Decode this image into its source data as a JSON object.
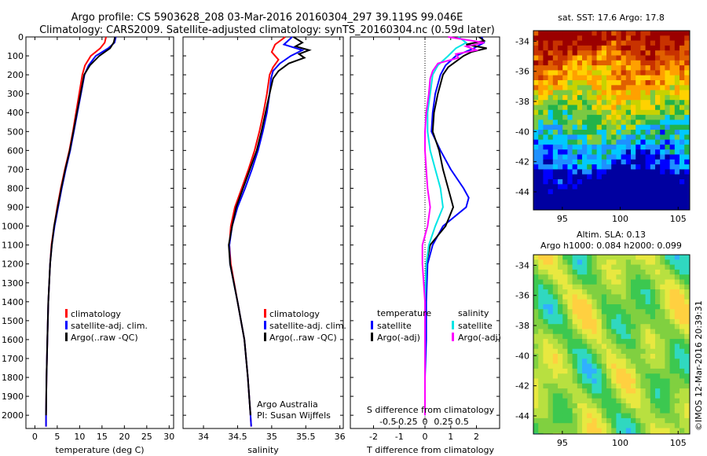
{
  "header": {
    "line1": "Argo profile: CS 5903628_208 03-Mar-2016 20160304_297 39.119S 99.046E",
    "line2": "Climatology: CARS2009. Satellite-adjusted climatology: synTS_20160304.nc (0.59d later)"
  },
  "footer": {
    "credit1": "Argo Australia",
    "credit2": "PI: Susan Wijffels",
    "imos": "©IMOS 12-Mar-2016 20:39:31"
  },
  "colors": {
    "climatology": "#ff0000",
    "satellite": "#0000ff",
    "argo": "#000000",
    "sal_satellite": "#00e5e5",
    "sal_argo": "#ff00ff"
  },
  "depth_ticks": [
    0,
    100,
    200,
    300,
    400,
    500,
    600,
    700,
    800,
    900,
    1000,
    1100,
    1200,
    1300,
    1400,
    1500,
    1600,
    1700,
    1800,
    1900,
    2000
  ],
  "chart_data": [
    {
      "type": "line",
      "xlabel": "temperature (deg C)",
      "xlim": [
        -2,
        31
      ],
      "ylim": [
        2070,
        0
      ],
      "xticks": [
        0,
        5,
        10,
        15,
        20,
        25,
        30
      ],
      "legend": [
        "climatology",
        "satellite-adj. clim.",
        "Argo(..raw -QC)"
      ],
      "series": [
        {
          "name": "climatology",
          "color": "#ff0000",
          "depth": [
            0,
            30,
            60,
            100,
            150,
            200,
            300,
            400,
            500,
            600,
            700,
            800,
            900,
            1000,
            1100,
            1200,
            1400,
            1600,
            1800,
            2000,
            2060
          ],
          "values": [
            15.9,
            15.6,
            14.6,
            12.5,
            11.2,
            10.6,
            9.9,
            9.2,
            8.5,
            7.7,
            6.7,
            5.8,
            5.0,
            4.3,
            3.7,
            3.4,
            3.0,
            2.8,
            2.6,
            2.5,
            2.5
          ]
        },
        {
          "name": "satellite-adj. clim.",
          "color": "#0000ff",
          "depth": [
            0,
            30,
            60,
            100,
            150,
            200,
            300,
            400,
            500,
            600,
            700,
            800,
            900,
            1000,
            1100,
            1200,
            1400,
            1600,
            1800,
            2000,
            2060
          ],
          "values": [
            18.1,
            17.8,
            16.4,
            13.6,
            12.0,
            11.1,
            10.3,
            9.5,
            8.7,
            7.9,
            6.9,
            6.0,
            5.2,
            4.4,
            3.8,
            3.4,
            3.0,
            2.8,
            2.6,
            2.5,
            2.5
          ]
        },
        {
          "name": "Argo(..raw -QC)",
          "color": "#000000",
          "depth": [
            0,
            30,
            60,
            100,
            150,
            200,
            300,
            400,
            500,
            600,
            700,
            800,
            900,
            1000,
            1100,
            1200,
            1400,
            1600,
            1800,
            2000
          ],
          "values": [
            17.9,
            17.6,
            16.8,
            14.4,
            12.3,
            11.0,
            10.2,
            9.4,
            8.6,
            7.8,
            6.8,
            5.9,
            5.1,
            4.3,
            3.8,
            3.4,
            3.0,
            2.8,
            2.6,
            2.5
          ]
        }
      ]
    },
    {
      "type": "line",
      "xlabel": "salinity",
      "xlim": [
        33.7,
        36.05
      ],
      "ylim": [
        2070,
        0
      ],
      "xticks": [
        34,
        34.5,
        35,
        35.5,
        36
      ],
      "legend": [
        "climatology",
        "satellite-adj. clim.",
        "Argo(..raw -QC)"
      ],
      "series": [
        {
          "name": "climatology",
          "color": "#ff0000",
          "depth": [
            0,
            40,
            80,
            120,
            160,
            200,
            300,
            400,
            500,
            600,
            700,
            800,
            900,
            1000,
            1100,
            1200,
            1400,
            1600,
            1800,
            2000,
            2060
          ],
          "values": [
            35.2,
            35.05,
            35.0,
            35.1,
            35.02,
            34.97,
            34.93,
            34.88,
            34.82,
            34.75,
            34.66,
            34.56,
            34.46,
            34.4,
            34.38,
            34.4,
            34.5,
            34.6,
            34.65,
            34.69,
            34.7
          ]
        },
        {
          "name": "satellite-adj. clim.",
          "color": "#0000ff",
          "depth": [
            0,
            40,
            70,
            100,
            140,
            180,
            220,
            300,
            400,
            500,
            600,
            700,
            800,
            900,
            1000,
            1100,
            1200,
            1400,
            1600,
            1800,
            2000,
            2060
          ],
          "values": [
            35.3,
            35.18,
            35.45,
            35.28,
            35.12,
            35.02,
            34.99,
            34.97,
            34.93,
            34.87,
            34.8,
            34.71,
            34.61,
            34.5,
            34.42,
            34.38,
            34.39,
            34.5,
            34.6,
            34.65,
            34.69,
            34.7
          ]
        },
        {
          "name": "Argo(..raw -QC)",
          "color": "#000000",
          "depth": [
            0,
            30,
            50,
            70,
            90,
            110,
            140,
            180,
            220,
            300,
            400,
            500,
            600,
            700,
            800,
            900,
            1000,
            1100,
            1200,
            1400,
            1600,
            1800,
            2000
          ],
          "values": [
            35.32,
            35.45,
            35.35,
            35.55,
            35.4,
            35.48,
            35.25,
            35.1,
            35.02,
            34.97,
            34.91,
            34.85,
            34.78,
            34.68,
            34.58,
            34.48,
            34.42,
            34.37,
            34.39,
            34.5,
            34.6,
            34.65,
            34.69
          ]
        }
      ]
    },
    {
      "type": "line",
      "xlabel": "T difference from climatology",
      "x2label": "S difference from climatology",
      "xlim": [
        -2.9,
        2.9
      ],
      "ylim": [
        2070,
        0
      ],
      "xticks": [
        -2,
        -1,
        0,
        1,
        2
      ],
      "x2ticks": [
        "-0.5",
        "-0.25",
        "0",
        "0.25",
        "0.5"
      ],
      "legend": {
        "temperature": "temperature",
        "salinity": "salinity",
        "t_sat": "satellite",
        "t_argo": "Argo(-adj)",
        "s_sat": "satellite",
        "s_argo": "Argo(-adj)"
      },
      "series": [
        {
          "name": "T satellite",
          "color": "#0000ff",
          "depth": [
            0,
            30,
            60,
            100,
            150,
            200,
            300,
            400,
            500,
            600,
            700,
            800,
            850,
            900,
            1000,
            1100,
            1200,
            1400,
            1600,
            1800,
            2000
          ],
          "values": [
            2.2,
            2.3,
            1.9,
            1.2,
            0.8,
            0.6,
            0.4,
            0.3,
            0.25,
            0.6,
            1.0,
            1.5,
            1.7,
            1.6,
            0.7,
            0.3,
            0.1,
            0.05,
            0.05,
            0.0,
            0.0
          ]
        },
        {
          "name": "T Argo(-adj)",
          "color": "#000000",
          "depth": [
            0,
            20,
            40,
            60,
            80,
            100,
            130,
            160,
            200,
            300,
            400,
            500,
            600,
            700,
            800,
            900,
            1000,
            1050,
            1100,
            1200,
            1400,
            1600,
            1800,
            2000
          ],
          "values": [
            2.1,
            2.3,
            1.6,
            2.4,
            1.8,
            1.5,
            1.2,
            0.9,
            0.7,
            0.5,
            0.35,
            0.3,
            0.55,
            0.7,
            0.9,
            1.1,
            0.8,
            0.5,
            0.2,
            0.05,
            0.0,
            0.0,
            0.0,
            0.0
          ]
        },
        {
          "name": "S satellite",
          "color": "#00e5e5",
          "depth": [
            0,
            30,
            60,
            100,
            150,
            200,
            300,
            400,
            500,
            600,
            700,
            800,
            900,
            1000,
            1100,
            1200,
            1400,
            1600,
            1800,
            2000
          ],
          "values": [
            1.3,
            1.6,
            1.2,
            0.9,
            0.5,
            0.3,
            0.2,
            0.1,
            0.1,
            0.2,
            0.4,
            0.6,
            0.7,
            0.4,
            0.15,
            0.05,
            0.0,
            0.0,
            0.0,
            0.0
          ]
        },
        {
          "name": "S Argo(-adj)",
          "color": "#ff00ff",
          "depth": [
            0,
            30,
            50,
            70,
            90,
            110,
            140,
            180,
            220,
            300,
            400,
            500,
            600,
            700,
            800,
            900,
            1000,
            1100,
            1200,
            1400,
            1600,
            1800,
            2000
          ],
          "values": [
            0.9,
            2.3,
            1.6,
            2.0,
            1.2,
            1.3,
            0.5,
            0.3,
            0.2,
            0.15,
            0.05,
            0.0,
            0.0,
            0.05,
            0.1,
            0.2,
            0.1,
            -0.1,
            -0.1,
            0.0,
            0.0,
            0.0,
            0.0
          ]
        }
      ]
    },
    {
      "type": "heatmap",
      "title": "sat. SST: 17.6 Argo: 17.8",
      "xticks": [
        95,
        100,
        105
      ],
      "yticks": [
        -34,
        -36,
        -38,
        -40,
        -42,
        -44
      ],
      "xlim": [
        92.5,
        106
      ],
      "ylim": [
        -45.2,
        -33.3
      ]
    },
    {
      "type": "heatmap",
      "title1": "Altim. SLA: 0.13",
      "title2": "Argo h1000: 0.084 h2000: 0.099",
      "xticks": [
        95,
        100,
        105
      ],
      "yticks": [
        -34,
        -36,
        -38,
        -40,
        -42,
        -44
      ],
      "xlim": [
        92.5,
        106
      ],
      "ylim": [
        -45.2,
        -33.3
      ]
    }
  ]
}
